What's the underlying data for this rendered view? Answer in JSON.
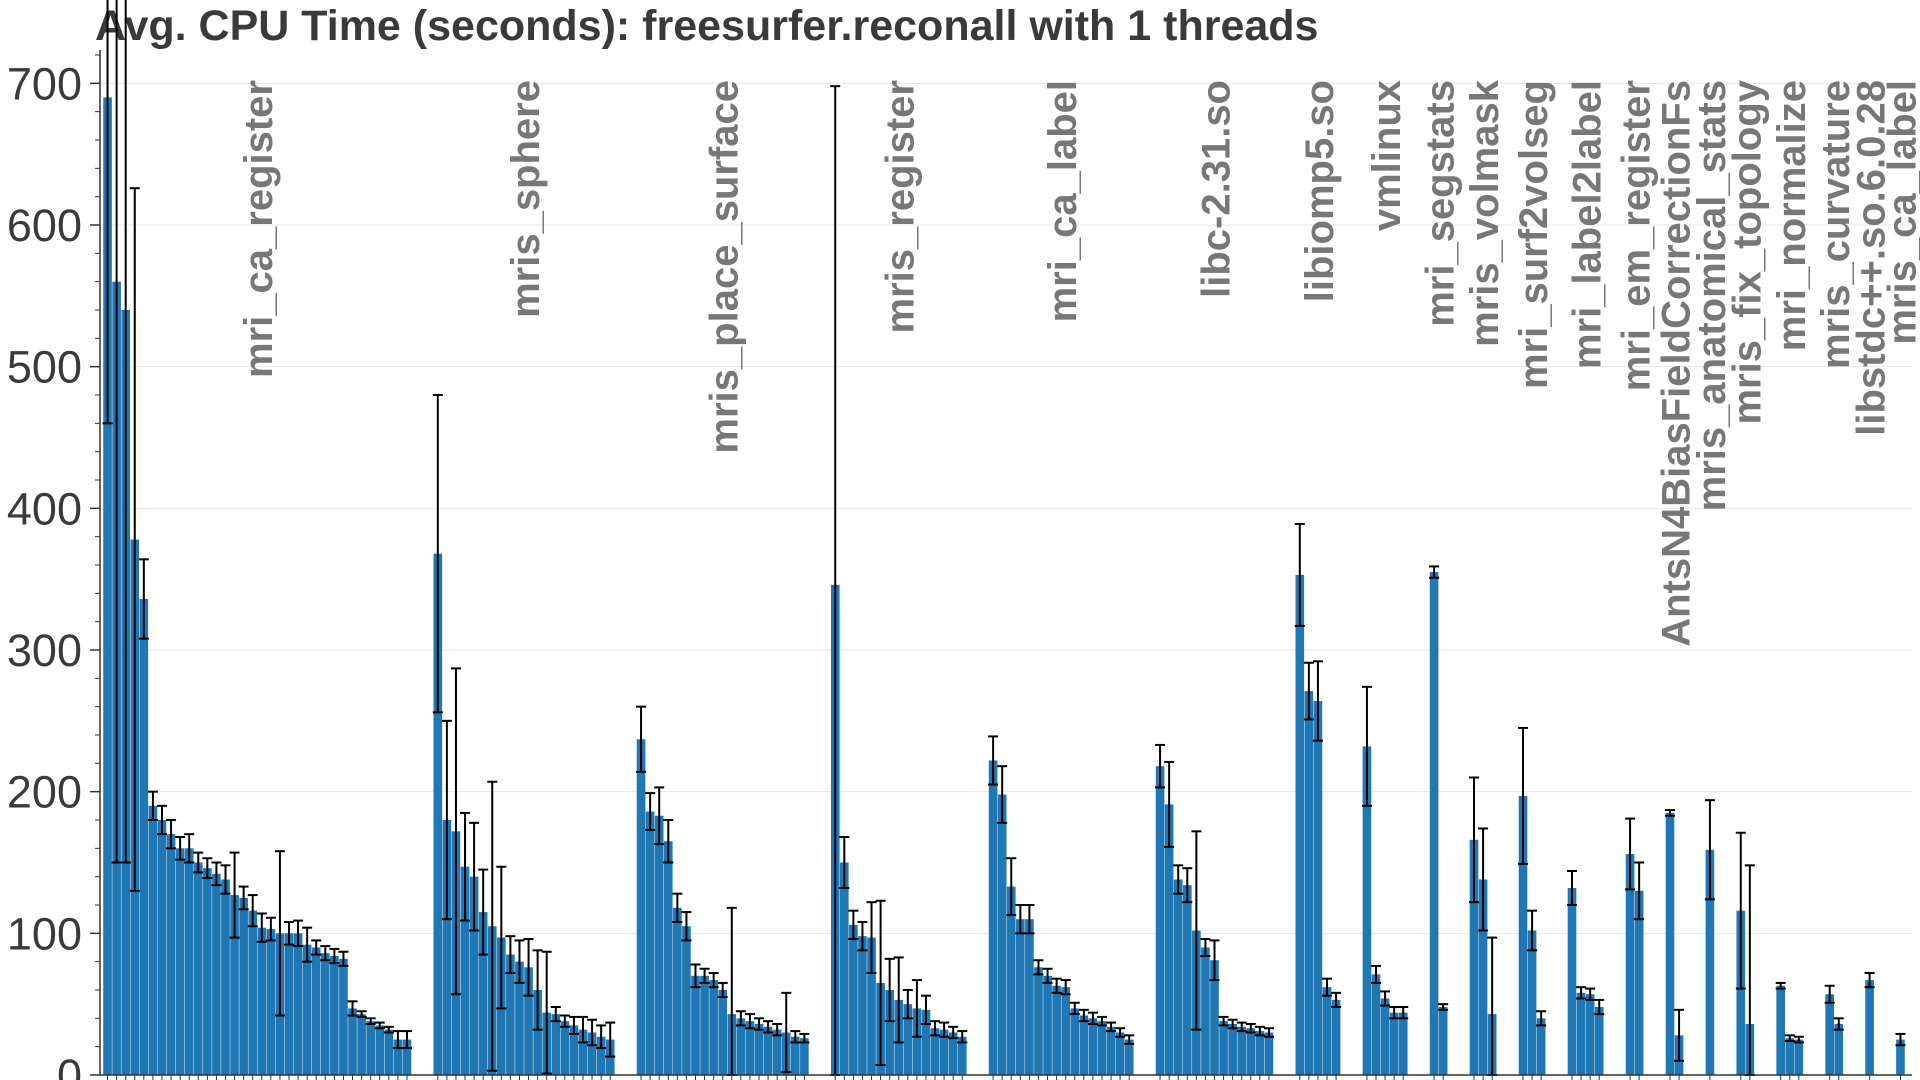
{
  "title": "Avg. CPU Time (seconds): freesurfer.reconall with 1 threads",
  "colors": {
    "bar": "#1f77b4",
    "error_bar": "#000000",
    "group_label": "#777777",
    "grid": "#e6e6e6",
    "axis_text": "#3a3a3a"
  },
  "chart_data": {
    "type": "bar",
    "title": "Avg. CPU Time (seconds): freesurfer.reconall with 1 threads",
    "xlabel": "",
    "ylabel": "",
    "ylim": [
      0,
      720
    ],
    "yticks": [
      0,
      100,
      200,
      300,
      400,
      500,
      600,
      700
    ],
    "grid": true,
    "error_bars": true,
    "groups": [
      {
        "label": "mri_ca_register",
        "values": [
          690,
          560,
          540,
          378,
          336,
          190,
          180,
          170,
          160,
          160,
          150,
          146,
          142,
          138,
          127,
          125,
          116,
          104,
          103,
          100,
          100,
          100,
          92,
          90,
          86,
          84,
          82,
          47,
          43,
          38,
          35,
          32,
          25,
          25
        ],
        "errors": [
          230,
          410,
          390,
          248,
          28,
          10,
          10,
          10,
          8,
          10,
          7,
          7,
          8,
          10,
          30,
          8,
          11,
          10,
          8,
          58,
          8,
          9,
          12,
          5,
          5,
          5,
          5,
          5,
          2,
          2,
          2,
          2,
          6,
          6
        ]
      },
      {
        "label": "mris_sphere",
        "values": [
          368,
          180,
          172,
          147,
          140,
          115,
          105,
          97,
          85,
          80,
          76,
          60,
          44,
          43,
          38,
          35,
          32,
          30,
          27,
          25
        ],
        "errors": [
          112,
          70,
          115,
          38,
          38,
          30,
          102,
          50,
          13,
          15,
          20,
          28,
          43,
          5,
          4,
          6,
          9,
          9,
          8,
          12
        ]
      },
      {
        "label": "mris_place_surface",
        "values": [
          237,
          186,
          183,
          165,
          118,
          105,
          70,
          70,
          67,
          60,
          43,
          40,
          38,
          36,
          34,
          32,
          30,
          27,
          26
        ],
        "errors": [
          23,
          13,
          20,
          15,
          10,
          10,
          8,
          5,
          5,
          5,
          75,
          5,
          5,
          4,
          4,
          4,
          28,
          4,
          3
        ]
      },
      {
        "label": "mris_register",
        "values": [
          346,
          150,
          106,
          98,
          97,
          65,
          60,
          53,
          50,
          47,
          46,
          33,
          32,
          30,
          27
        ],
        "errors": [
          352,
          18,
          10,
          10,
          25,
          58,
          22,
          30,
          10,
          20,
          10,
          5,
          5,
          4,
          4
        ]
      },
      {
        "label": "mri_ca_label",
        "values": [
          222,
          198,
          133,
          110,
          110,
          76,
          70,
          63,
          62,
          47,
          42,
          40,
          38,
          34,
          30,
          25
        ],
        "errors": [
          17,
          20,
          20,
          10,
          10,
          5,
          5,
          5,
          5,
          4,
          4,
          4,
          3,
          3,
          3,
          3
        ]
      },
      {
        "label": "libc-2.31.so",
        "values": [
          218,
          191,
          138,
          134,
          102,
          90,
          81,
          38,
          36,
          34,
          33,
          31,
          30
        ],
        "errors": [
          15,
          30,
          10,
          12,
          70,
          6,
          14,
          3,
          3,
          3,
          3,
          3,
          3
        ]
      },
      {
        "label": "libiomp5.so",
        "values": [
          353,
          271,
          264,
          62,
          53
        ],
        "errors": [
          36,
          20,
          28,
          6,
          5
        ]
      },
      {
        "label": "vmlinux",
        "values": [
          232,
          71,
          54,
          44,
          44
        ],
        "errors": [
          42,
          6,
          5,
          4,
          4
        ]
      },
      {
        "label": "mri_segstats",
        "values": [
          355,
          48
        ],
        "errors": [
          4,
          2
        ]
      },
      {
        "label": "mris_volmask",
        "values": [
          166,
          138,
          43
        ],
        "errors": [
          44,
          36,
          54
        ]
      },
      {
        "label": "mri_surf2volseg",
        "values": [
          197,
          102,
          40
        ],
        "errors": [
          48,
          14,
          5
        ]
      },
      {
        "label": "mri_label2label",
        "values": [
          132,
          58,
          57,
          48
        ],
        "errors": [
          12,
          4,
          4,
          5
        ]
      },
      {
        "label": "mri_em_register",
        "values": [
          156,
          130
        ],
        "errors": [
          25,
          20
        ]
      },
      {
        "label": "AntsN4BiasFieldCorrectionFs",
        "values": [
          185,
          28
        ],
        "errors": [
          2,
          18
        ]
      },
      {
        "label": "mris_anatomical_stats",
        "values": [
          159
        ],
        "errors": [
          35
        ]
      },
      {
        "label": "mris_fix_topology",
        "values": [
          116,
          36
        ],
        "errors": [
          55,
          112
        ]
      },
      {
        "label": "mri_normalize",
        "values": [
          63,
          26,
          25
        ],
        "errors": [
          2,
          2,
          2
        ]
      },
      {
        "label": "mris_curvature",
        "values": [
          57,
          36
        ],
        "errors": [
          6,
          4
        ]
      },
      {
        "label": "libstdc++.so.6.0.28",
        "values": [
          67
        ],
        "errors": [
          5
        ]
      },
      {
        "label": "mris_ca_label",
        "values": [
          25
        ],
        "errors": [
          4
        ]
      }
    ]
  }
}
